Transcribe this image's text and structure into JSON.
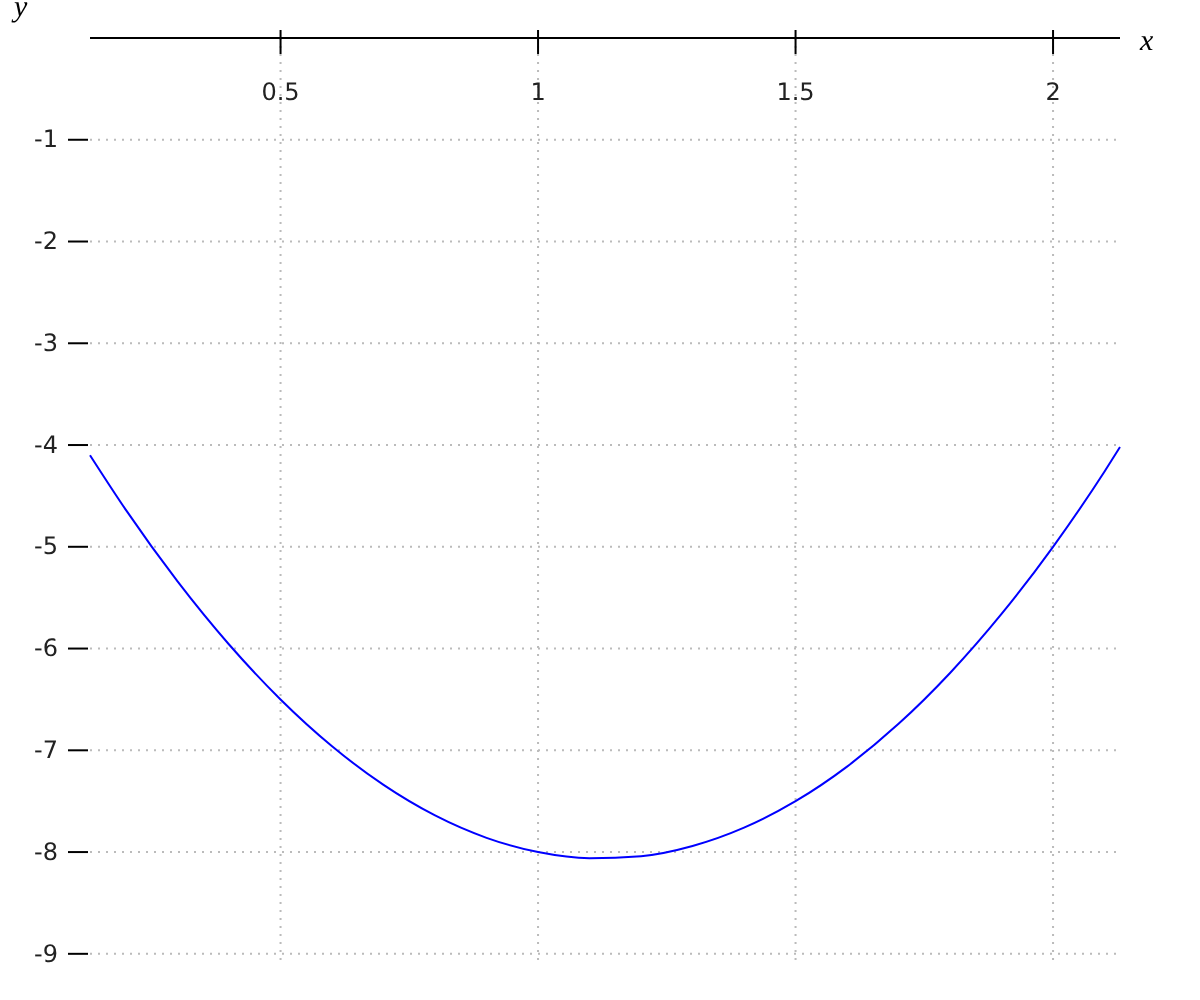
{
  "chart_data": {
    "type": "line",
    "xlabel": "x",
    "ylabel": "y",
    "x": [
      0.13,
      0.2,
      0.3,
      0.4,
      0.5,
      0.6,
      0.7,
      0.8,
      0.9,
      1.0,
      1.1,
      1.2,
      1.3,
      1.4,
      1.5,
      1.6,
      1.7,
      1.8,
      1.9,
      2.0,
      2.1,
      2.13
    ],
    "series": [
      {
        "color": "#0000ff",
        "values": [
          -4.1,
          -4.64,
          -5.34,
          -5.96,
          -6.5,
          -6.96,
          -7.34,
          -7.64,
          -7.86,
          -8.0,
          -8.06,
          -8.04,
          -7.94,
          -7.76,
          -7.5,
          -7.16,
          -6.74,
          -6.24,
          -5.66,
          -5.0,
          -4.26,
          -4.02
        ]
      }
    ],
    "xlim": [
      0.13,
      2.13
    ],
    "ylim": [
      -9.1,
      0
    ],
    "xticks": [
      0.5,
      1,
      1.5,
      2
    ],
    "yticks": [
      -1,
      -2,
      -3,
      -4,
      -5,
      -6,
      -7,
      -8,
      -9
    ],
    "grid": true,
    "marker": "none",
    "line_style": "solid"
  }
}
